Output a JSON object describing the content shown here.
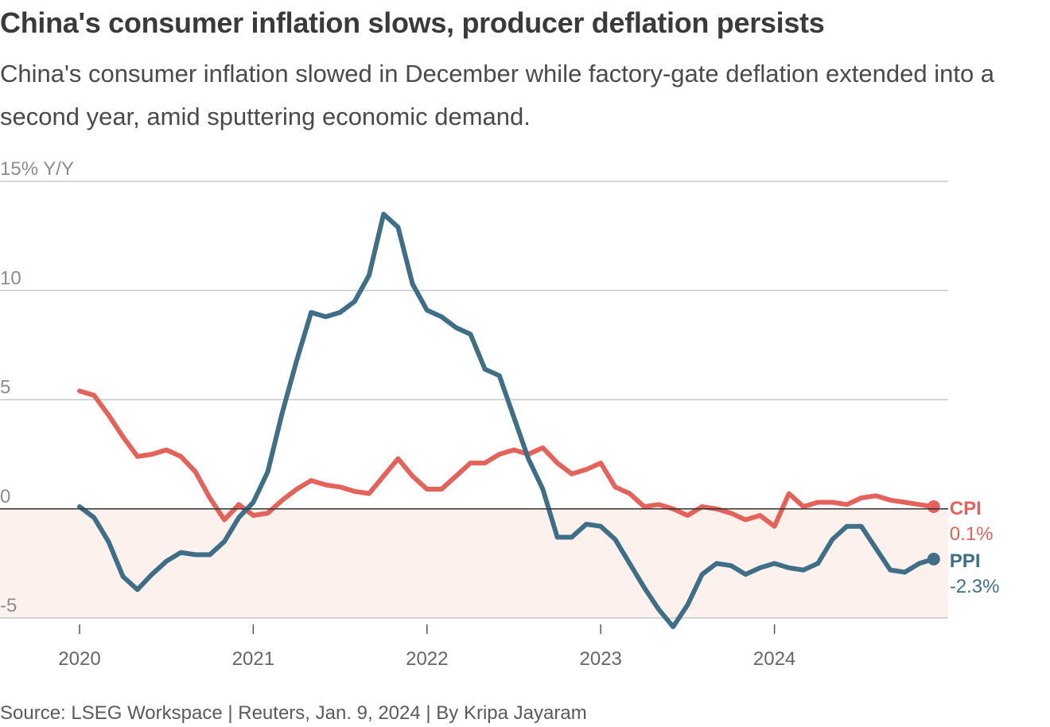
{
  "header": {
    "title": "China's consumer inflation slows, producer deflation persists",
    "subtitle": "China's consumer inflation slowed in December while factory-gate deflation extended into a second year, amid sputtering economic demand."
  },
  "footer": {
    "source": "Source: LSEG Workspace | Reuters, Jan. 9, 2024 | By Kripa Jayaram"
  },
  "colors": {
    "cpi": "#e5625a",
    "ppi": "#3f6f86",
    "negative_band": "#fdf1ee",
    "grid": "#c8c8c8",
    "zero_line": "#333333"
  },
  "chart_data": {
    "type": "line",
    "title": "China's consumer inflation slows, producer deflation persists",
    "ylabel": "% Y/Y",
    "ylim": [
      -5,
      15
    ],
    "yticks": [
      {
        "value": 15,
        "label": "15% Y/Y"
      },
      {
        "value": 10,
        "label": "10"
      },
      {
        "value": 5,
        "label": "5"
      },
      {
        "value": 0,
        "label": "0"
      },
      {
        "value": -5,
        "label": "-5"
      }
    ],
    "xticks": [
      {
        "value": 2020,
        "label": "2020"
      },
      {
        "value": 2021,
        "label": "2021"
      },
      {
        "value": 2022,
        "label": "2022"
      },
      {
        "value": 2023,
        "label": "2023"
      },
      {
        "value": 2024,
        "label": "2024"
      }
    ],
    "x_start": "2020-01",
    "x_end": "2024-12",
    "series": [
      {
        "name": "CPI",
        "end_label": "0.1%",
        "values": [
          5.4,
          5.2,
          4.3,
          3.3,
          2.4,
          2.5,
          2.7,
          2.4,
          1.7,
          0.5,
          -0.5,
          0.2,
          -0.3,
          -0.2,
          0.4,
          0.9,
          1.3,
          1.1,
          1.0,
          0.8,
          0.7,
          1.5,
          2.3,
          1.5,
          0.9,
          0.9,
          1.5,
          2.1,
          2.1,
          2.5,
          2.7,
          2.5,
          2.8,
          2.1,
          1.6,
          1.8,
          2.1,
          1.0,
          0.7,
          0.1,
          0.2,
          0.0,
          -0.3,
          0.1,
          0.0,
          -0.2,
          -0.5,
          -0.3,
          -0.8,
          0.7,
          0.1,
          0.3,
          0.3,
          0.2,
          0.5,
          0.6,
          0.4,
          0.3,
          0.2,
          0.1
        ]
      },
      {
        "name": "PPI",
        "end_label": "-2.3%",
        "values": [
          0.1,
          -0.4,
          -1.5,
          -3.1,
          -3.7,
          -3.0,
          -2.4,
          -2.0,
          -2.1,
          -2.1,
          -1.5,
          -0.4,
          0.3,
          1.7,
          4.4,
          6.8,
          9.0,
          8.8,
          9.0,
          9.5,
          10.7,
          13.5,
          12.9,
          10.3,
          9.1,
          8.8,
          8.3,
          8.0,
          6.4,
          6.1,
          4.2,
          2.3,
          0.9,
          -1.3,
          -1.3,
          -0.7,
          -0.8,
          -1.4,
          -2.5,
          -3.6,
          -4.6,
          -5.4,
          -4.4,
          -3.0,
          -2.5,
          -2.6,
          -3.0,
          -2.7,
          -2.5,
          -2.7,
          -2.8,
          -2.5,
          -1.4,
          -0.8,
          -0.8,
          -1.8,
          -2.8,
          -2.9,
          -2.5,
          -2.3
        ]
      }
    ],
    "negative_region": "shaded below 0"
  }
}
